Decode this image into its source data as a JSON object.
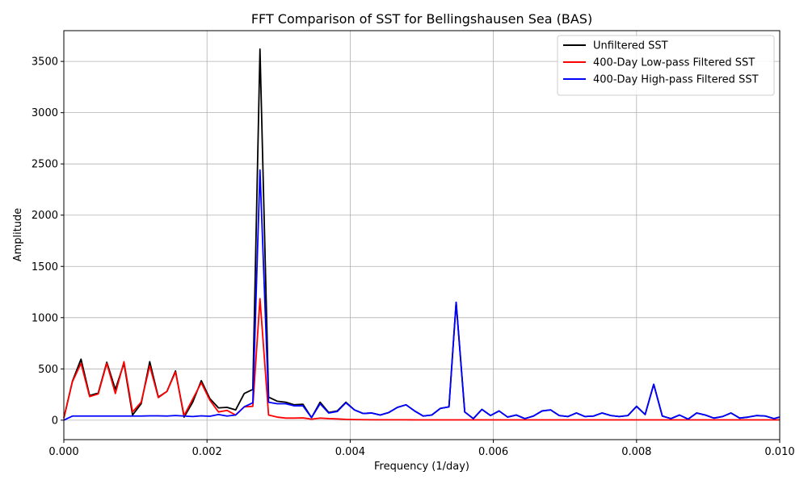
{
  "chart_data": {
    "type": "line",
    "title": "FFT Comparison of SST for Bellingshausen Sea (BAS)",
    "xlabel": "Frequency (1/day)",
    "ylabel": "Amplitude",
    "xlim": [
      0,
      0.01
    ],
    "ylim": [
      -190,
      3800
    ],
    "xticks": [
      0,
      0.002,
      0.004,
      0.006,
      0.008,
      0.01
    ],
    "xtick_labels": [
      "0.000",
      "0.002",
      "0.004",
      "0.006",
      "0.008",
      "0.010"
    ],
    "yticks": [
      0,
      500,
      1000,
      1500,
      2000,
      2500,
      3000,
      3500
    ],
    "ytick_labels": [
      "0",
      "500",
      "1000",
      "1500",
      "2000",
      "2500",
      "3000",
      "3500"
    ],
    "grid": true,
    "legend_position": "top-right",
    "x": [
      0.0,
      0.00012,
      0.00024,
      0.00036,
      0.00048,
      0.0006,
      0.00072,
      0.00084,
      0.00096,
      0.00108,
      0.0012,
      0.00132,
      0.00144,
      0.00156,
      0.00168,
      0.0018,
      0.00192,
      0.00204,
      0.00216,
      0.00228,
      0.0024,
      0.00252,
      0.00264,
      0.00274,
      0.00286,
      0.00298,
      0.0031,
      0.00322,
      0.00334,
      0.00346,
      0.00358,
      0.0037,
      0.00382,
      0.00394,
      0.00406,
      0.00418,
      0.0043,
      0.00442,
      0.00454,
      0.00466,
      0.00478,
      0.0049,
      0.00502,
      0.00514,
      0.00526,
      0.00538,
      0.00548,
      0.0056,
      0.00572,
      0.00584,
      0.00596,
      0.00608,
      0.0062,
      0.00632,
      0.00644,
      0.00656,
      0.00668,
      0.0068,
      0.00692,
      0.00704,
      0.00716,
      0.00728,
      0.0074,
      0.00752,
      0.00764,
      0.00776,
      0.00788,
      0.008,
      0.00812,
      0.00824,
      0.00836,
      0.00848,
      0.0086,
      0.00872,
      0.00884,
      0.00896,
      0.00908,
      0.0092,
      0.00932,
      0.00944,
      0.00956,
      0.00968,
      0.0098,
      0.00992,
      0.01
    ],
    "series": [
      {
        "name": "Unfiltered SST",
        "color": "#000000",
        "values": [
          20,
          380,
          595,
          240,
          265,
          565,
          300,
          555,
          50,
          160,
          570,
          225,
          280,
          480,
          30,
          175,
          385,
          210,
          120,
          125,
          100,
          260,
          300,
          3620,
          225,
          185,
          175,
          150,
          155,
          25,
          175,
          75,
          90,
          175,
          100,
          65,
          70,
          50,
          75,
          125,
          150,
          90,
          40,
          50,
          115,
          130,
          1150,
          80,
          15,
          105,
          45,
          90,
          30,
          50,
          15,
          40,
          90,
          100,
          45,
          35,
          70,
          35,
          40,
          70,
          45,
          35,
          45,
          135,
          55,
          350,
          40,
          15,
          50,
          10,
          70,
          50,
          20,
          35,
          70,
          20,
          30,
          45,
          40,
          15,
          30
        ]
      },
      {
        "name": "400-Day Low-pass Filtered SST",
        "color": "#ff0000",
        "values": [
          20,
          375,
          555,
          230,
          255,
          555,
          260,
          570,
          80,
          175,
          530,
          220,
          280,
          470,
          45,
          205,
          365,
          195,
          80,
          95,
          50,
          130,
          135,
          1185,
          50,
          30,
          20,
          20,
          22,
          10,
          20,
          15,
          12,
          8,
          6,
          5,
          4,
          4,
          4,
          4,
          4,
          3,
          3,
          3,
          3,
          3,
          3,
          3,
          3,
          3,
          3,
          3,
          3,
          3,
          3,
          3,
          3,
          3,
          3,
          3,
          3,
          3,
          3,
          3,
          3,
          3,
          3,
          3,
          3,
          3,
          3,
          3,
          3,
          3,
          3,
          3,
          3,
          3,
          3,
          3,
          3,
          3,
          3,
          3,
          3
        ]
      },
      {
        "name": "400-Day High-pass Filtered SST",
        "color": "#0000ff",
        "values": [
          0,
          40,
          40,
          40,
          40,
          40,
          40,
          40,
          40,
          40,
          42,
          42,
          40,
          45,
          40,
          35,
          42,
          38,
          55,
          40,
          50,
          130,
          170,
          2440,
          175,
          160,
          160,
          140,
          140,
          25,
          160,
          70,
          85,
          170,
          100,
          65,
          70,
          50,
          75,
          125,
          150,
          90,
          40,
          50,
          115,
          130,
          1150,
          80,
          15,
          105,
          45,
          90,
          30,
          50,
          15,
          40,
          90,
          100,
          45,
          35,
          70,
          35,
          40,
          70,
          45,
          35,
          45,
          135,
          55,
          350,
          40,
          15,
          50,
          10,
          70,
          50,
          20,
          35,
          70,
          20,
          30,
          45,
          40,
          15,
          30
        ]
      }
    ]
  }
}
